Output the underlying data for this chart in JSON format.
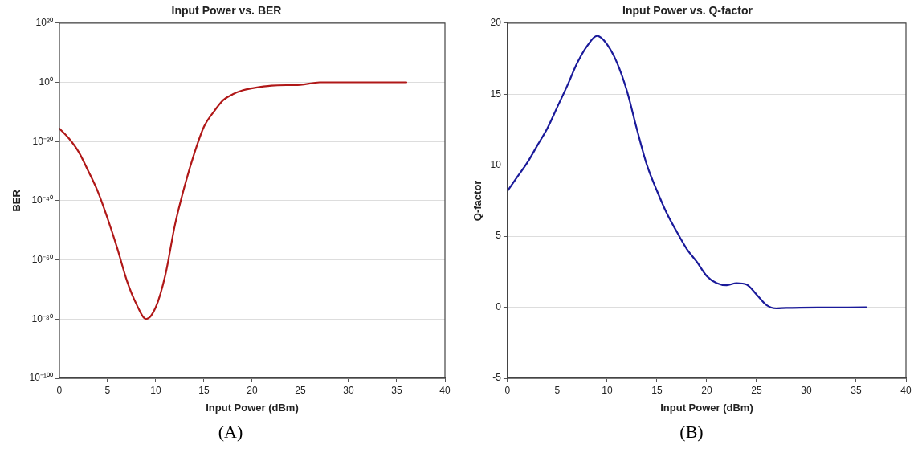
{
  "chart_data": [
    {
      "type": "line",
      "title": "Input Power vs. BER",
      "xlabel": "Input Power (dBm)",
      "ylabel": "BER",
      "log": "y",
      "grid": "y",
      "legend": false,
      "marker": "none",
      "x": [
        0,
        1,
        2,
        3,
        4,
        5,
        6,
        7,
        8,
        9,
        10,
        11,
        12,
        13,
        14,
        15,
        16,
        17,
        18,
        19,
        20,
        22,
        25,
        27,
        36
      ],
      "series": [
        {
          "color": "#b01818",
          "values": [
            2.5e-16,
            1e-19,
            3e-24,
            1e-30,
            1e-37,
            1e-46,
            1e-56,
            1e-67,
            1e-75,
            1e-80,
            1e-76,
            1e-65,
            1e-48,
            1e-35,
            1e-24,
            1e-15,
            1e-10,
            1e-06,
            0.0001,
            0.002,
            0.01,
            0.08,
            0.15,
            1,
            1
          ]
        }
      ],
      "xlim": [
        0,
        40
      ],
      "xticks": [
        0,
        5,
        10,
        15,
        20,
        25,
        30,
        35,
        40
      ],
      "ylim": [
        1e-100,
        1e+20
      ],
      "yticks": [
        {
          "value": 1e-100,
          "label": "10⁻¹⁰⁰"
        },
        {
          "value": 1e-80,
          "label": "10⁻⁸⁰"
        },
        {
          "value": 1e-60,
          "label": "10⁻⁶⁰"
        },
        {
          "value": 1e-40,
          "label": "10⁻⁴⁰"
        },
        {
          "value": 1e-20,
          "label": "10⁻²⁰"
        },
        {
          "value": 1,
          "label": "10⁰"
        },
        {
          "value": 1e+20,
          "label": "10²⁰"
        }
      ],
      "annotations": [
        "(A)"
      ]
    },
    {
      "type": "line",
      "title": "Input Power vs. Q-factor",
      "xlabel": "Input Power (dBm)",
      "ylabel": "Q-factor",
      "grid": "y",
      "legend": false,
      "marker": "none",
      "x": [
        0,
        1,
        2,
        3,
        4,
        5,
        6,
        7,
        8,
        9,
        10,
        11,
        12,
        13,
        14,
        15,
        16,
        17,
        18,
        19,
        20,
        21,
        22,
        23,
        24,
        25,
        26,
        27,
        28,
        36
      ],
      "series": [
        {
          "color": "#1a1a9a",
          "values": [
            8.2,
            9.2,
            10.2,
            11.4,
            12.6,
            14.1,
            15.6,
            17.2,
            18.4,
            19.1,
            18.5,
            17.2,
            15.2,
            12.5,
            10.0,
            8.2,
            6.6,
            5.3,
            4.1,
            3.2,
            2.2,
            1.7,
            1.55,
            1.7,
            1.6,
            0.9,
            0.15,
            -0.08,
            -0.05,
            0
          ]
        }
      ],
      "xlim": [
        0,
        40
      ],
      "xticks": [
        0,
        5,
        10,
        15,
        20,
        25,
        30,
        35,
        40
      ],
      "ylim": [
        -5,
        20
      ],
      "yticks": [
        -5,
        0,
        5,
        10,
        15,
        20
      ],
      "annotations": [
        "(B)"
      ]
    }
  ]
}
